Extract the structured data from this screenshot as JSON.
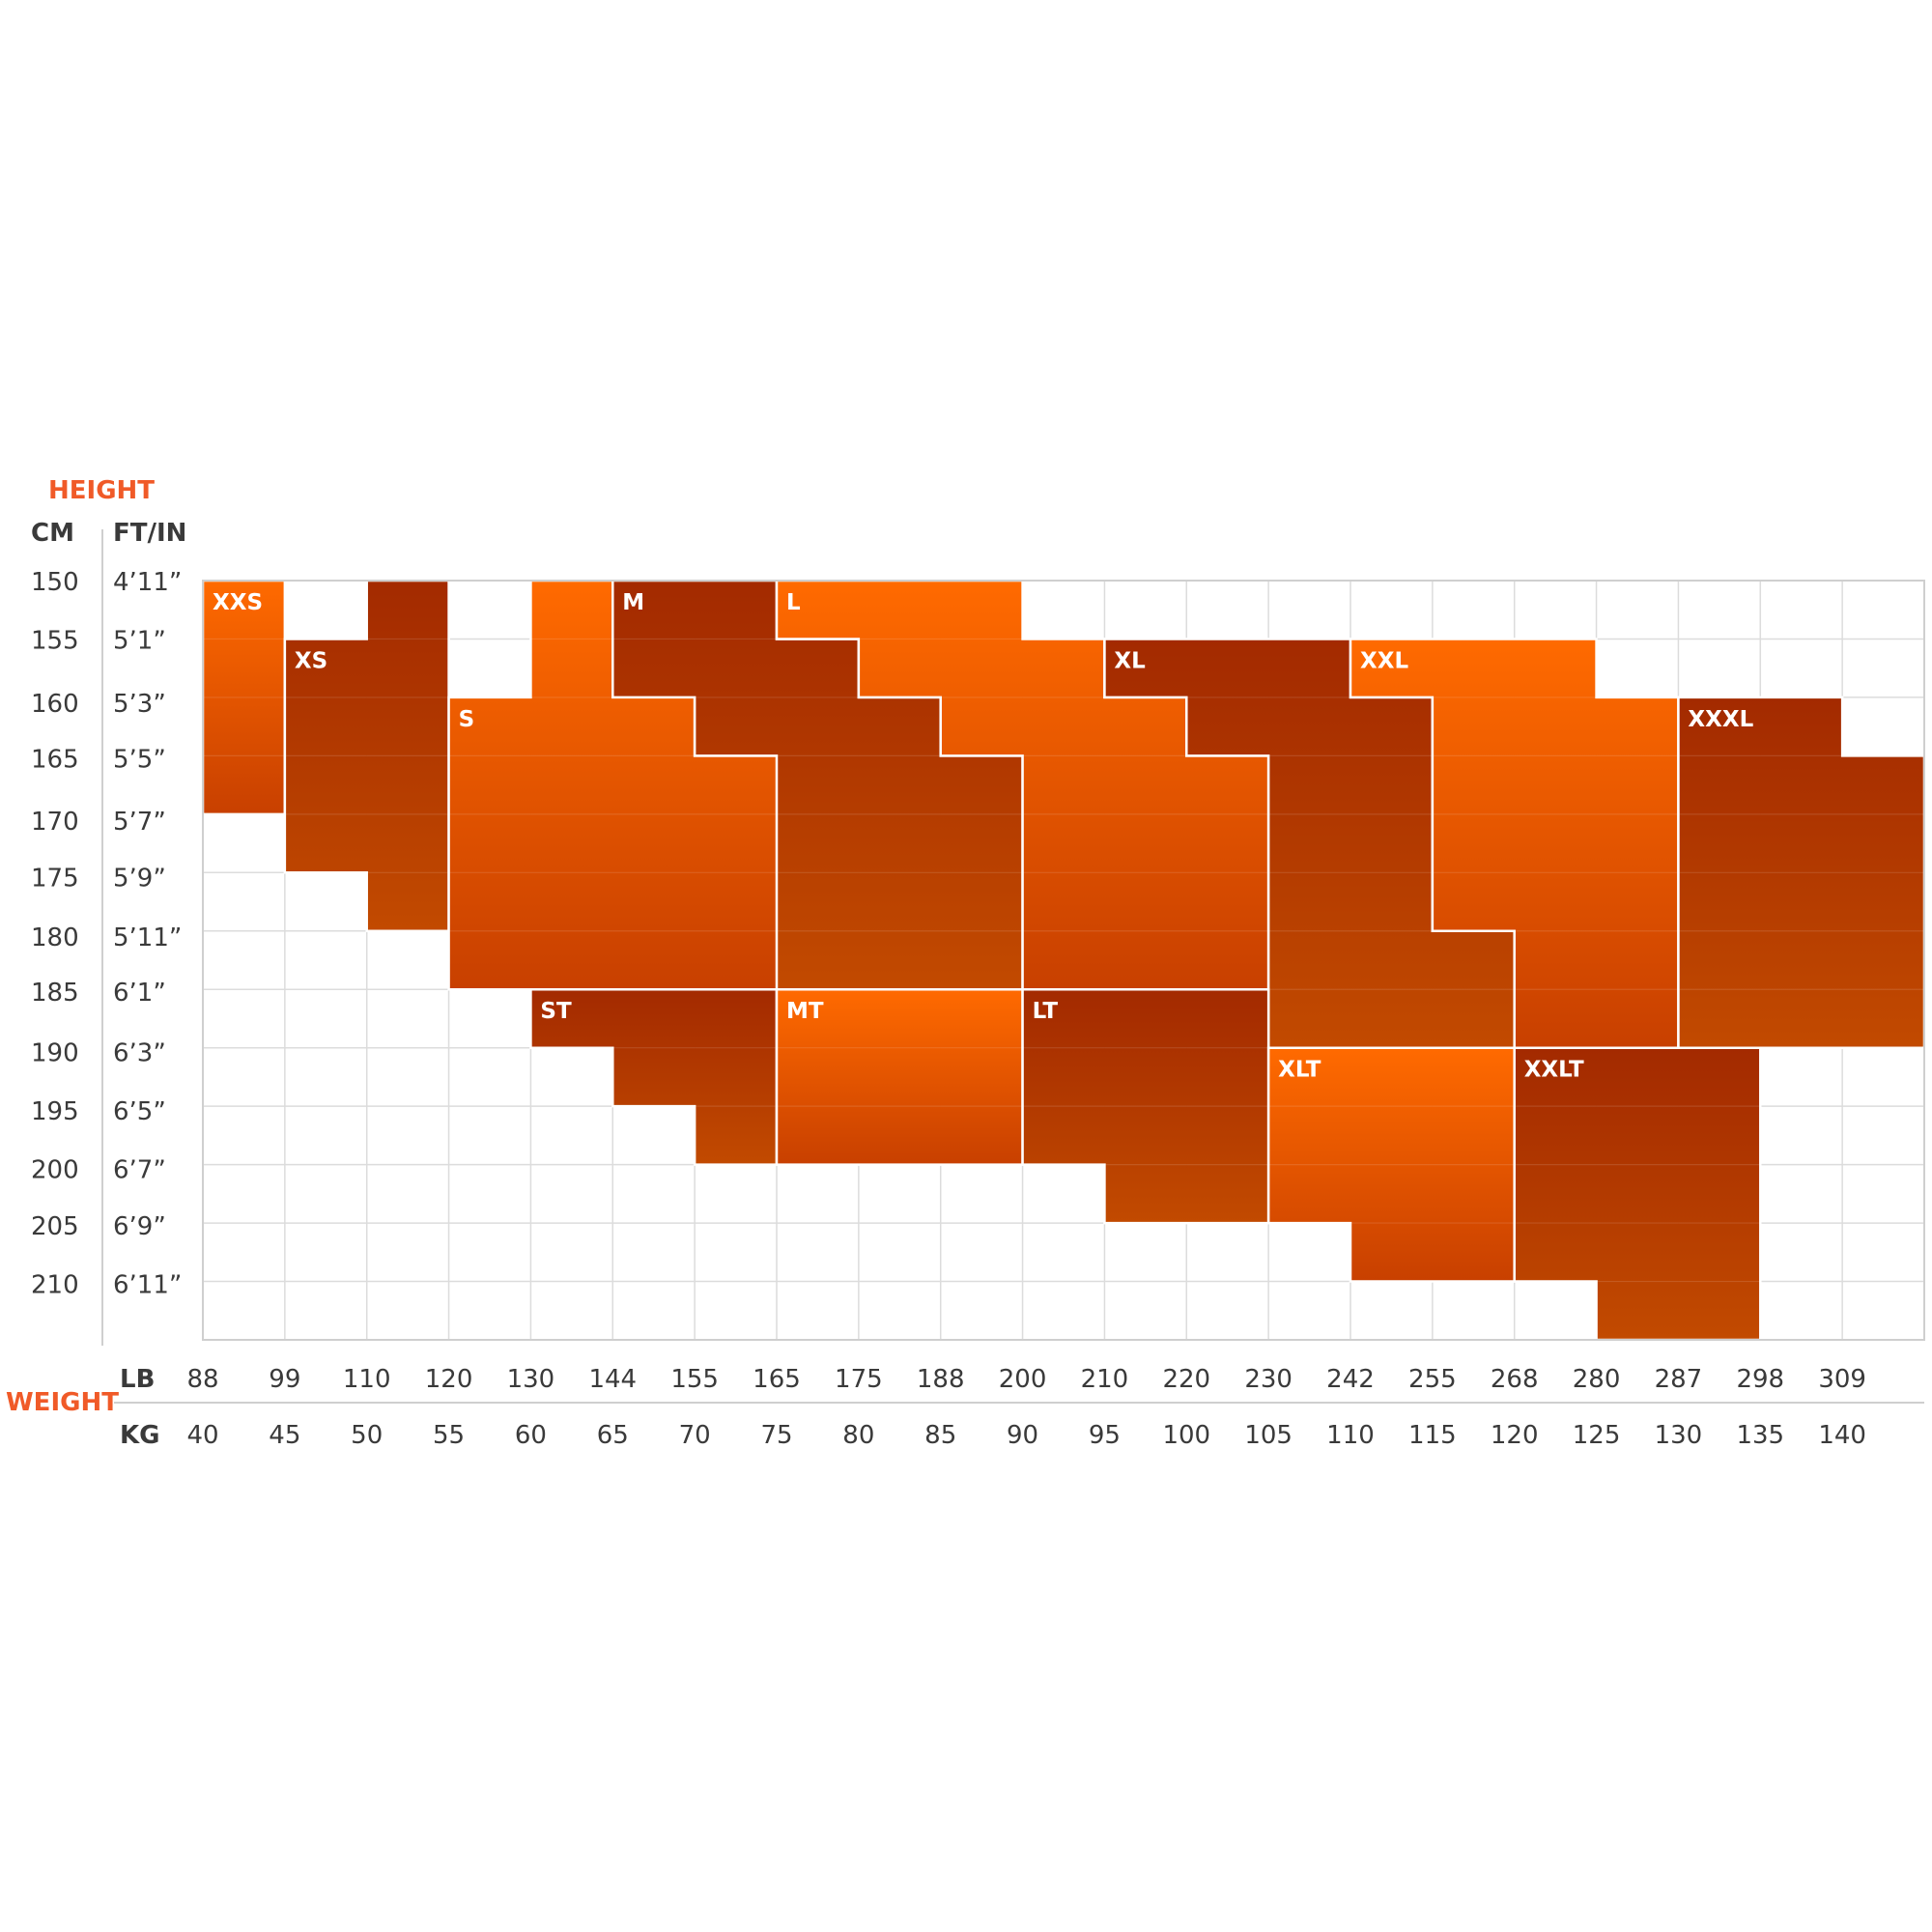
{
  "labels": {
    "height": "HEIGHT",
    "cm": "CM",
    "ftin": "FT/IN",
    "weight": "WEIGHT",
    "lb": "LB",
    "kg": "KG"
  },
  "colors": {
    "accent": "#f05a28",
    "bright_top": "#ff6a00",
    "bright_bottom": "#c84000",
    "dark_top": "#a32a00",
    "dark_bottom": "#c24a00"
  },
  "chart_data": {
    "type": "heatmap",
    "y_cm": [
      "150",
      "155",
      "160",
      "165",
      "170",
      "175",
      "180",
      "185",
      "190",
      "195",
      "200",
      "205",
      "210"
    ],
    "y_ftin": [
      "4’11”",
      "5’1”",
      "5’3”",
      "5’5”",
      "5’7”",
      "5’9”",
      "5’11”",
      "6’1”",
      "6’3”",
      "6’5”",
      "6’7”",
      "6’9”",
      "6’11”"
    ],
    "x_lb": [
      "88",
      "99",
      "110",
      "120",
      "130",
      "144",
      "155",
      "165",
      "175",
      "188",
      "200",
      "210",
      "220",
      "230",
      "242",
      "255",
      "268",
      "280",
      "287",
      "298",
      "309"
    ],
    "x_kg": [
      "40",
      "45",
      "50",
      "55",
      "60",
      "65",
      "70",
      "75",
      "80",
      "85",
      "90",
      "95",
      "100",
      "105",
      "110",
      "115",
      "120",
      "125",
      "130",
      "135",
      "140"
    ],
    "regions": [
      {
        "size": "XXS",
        "tone": "bright",
        "columns": [
          [
            40,
            150,
            170
          ]
        ]
      },
      {
        "size": "XS",
        "tone": "dark",
        "columns": [
          [
            45,
            155,
            175
          ],
          [
            50,
            150,
            180
          ]
        ]
      },
      {
        "size": "S",
        "tone": "bright",
        "columns": [
          [
            55,
            160,
            185
          ],
          [
            60,
            150,
            185
          ],
          [
            65,
            150,
            185
          ],
          [
            70,
            165,
            185
          ],
          [
            75,
            165,
            185
          ]
        ]
      },
      {
        "size": "M",
        "tone": "dark",
        "columns": [
          [
            65,
            150,
            160
          ],
          [
            70,
            150,
            165
          ],
          [
            75,
            155,
            185
          ],
          [
            80,
            160,
            185
          ],
          [
            85,
            165,
            185
          ]
        ]
      },
      {
        "size": "L",
        "tone": "bright",
        "columns": [
          [
            75,
            150,
            155
          ],
          [
            80,
            150,
            160
          ],
          [
            85,
            150,
            165
          ],
          [
            90,
            155,
            185
          ],
          [
            95,
            160,
            185
          ],
          [
            100,
            165,
            185
          ]
        ]
      },
      {
        "size": "XL",
        "tone": "dark",
        "columns": [
          [
            95,
            155,
            160
          ],
          [
            100,
            155,
            165
          ],
          [
            105,
            155,
            190
          ],
          [
            110,
            160,
            190
          ],
          [
            115,
            180,
            190
          ]
        ]
      },
      {
        "size": "XXL",
        "tone": "bright",
        "columns": [
          [
            110,
            155,
            160
          ],
          [
            115,
            155,
            180
          ],
          [
            120,
            155,
            190
          ],
          [
            125,
            160,
            190
          ]
        ]
      },
      {
        "size": "XXXL",
        "tone": "dark",
        "columns": [
          [
            130,
            160,
            190
          ],
          [
            135,
            160,
            190
          ],
          [
            140,
            165,
            190
          ]
        ]
      },
      {
        "size": "ST",
        "tone": "dark",
        "columns": [
          [
            60,
            185,
            190
          ],
          [
            65,
            185,
            195
          ],
          [
            70,
            185,
            200
          ]
        ]
      },
      {
        "size": "MT",
        "tone": "bright",
        "columns": [
          [
            75,
            185,
            200
          ],
          [
            80,
            185,
            200
          ],
          [
            85,
            185,
            200
          ]
        ]
      },
      {
        "size": "LT",
        "tone": "dark",
        "columns": [
          [
            90,
            185,
            200
          ],
          [
            95,
            185,
            205
          ],
          [
            100,
            185,
            205
          ]
        ]
      },
      {
        "size": "XLT",
        "tone": "bright",
        "columns": [
          [
            105,
            190,
            205
          ],
          [
            110,
            190,
            210
          ],
          [
            115,
            190,
            210
          ]
        ]
      },
      {
        "size": "XXLT",
        "tone": "dark",
        "columns": [
          [
            120,
            190,
            210
          ],
          [
            125,
            190,
            215
          ],
          [
            130,
            190,
            215
          ]
        ]
      }
    ]
  }
}
